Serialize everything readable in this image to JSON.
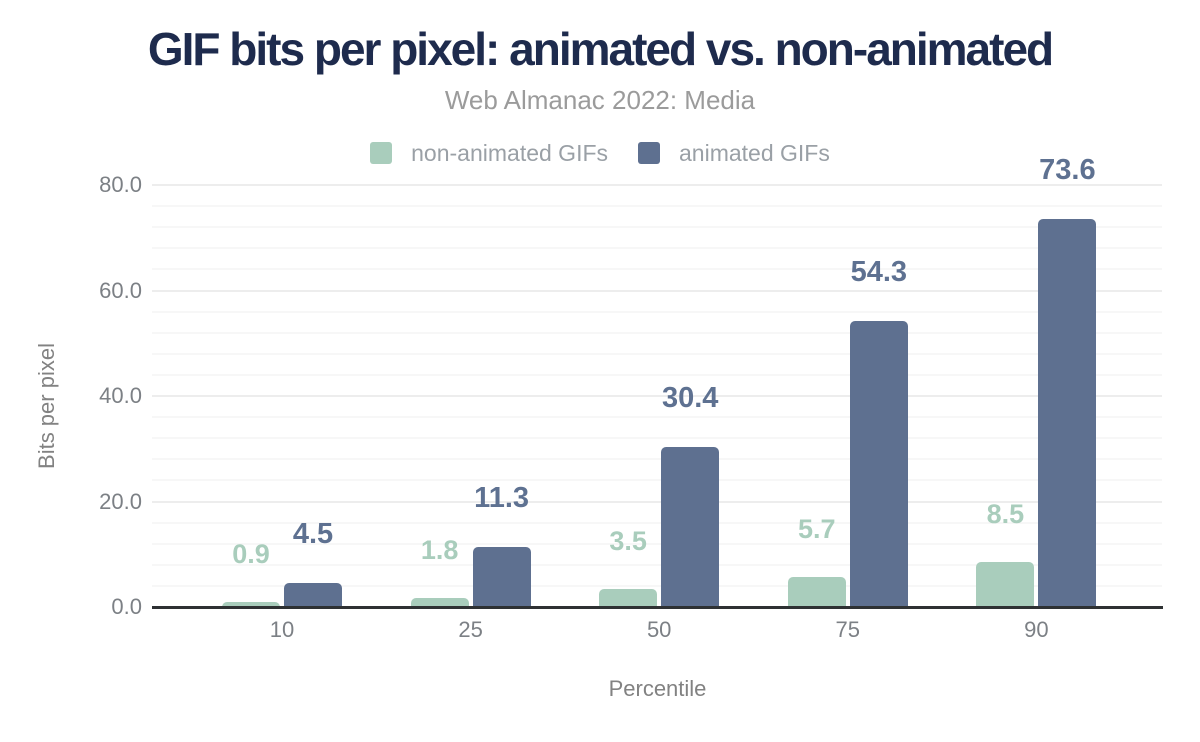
{
  "header": {
    "title": "GIF bits per pixel: animated vs. non-animated",
    "subtitle": "Web Almanac 2022: Media"
  },
  "colors": {
    "title_navy": "#1e2b4d",
    "non_animated_green": "#a9cdbc",
    "animated_slate": "#5e7090",
    "animated_label_slate": "#5e7191",
    "axis_text_gray": "#7c8085",
    "legend_text_gray": "#9aa0a6",
    "subtitle_gray": "#9b9b9b",
    "gridline_minor": "#f7f7f7",
    "gridline_major": "#ededed",
    "axis_line_dark": "#2e3133"
  },
  "chart_data": {
    "type": "bar",
    "title": "GIF bits per pixel: animated vs. non-animated",
    "subtitle": "Web Almanac 2022: Media",
    "categories": [
      "10",
      "25",
      "50",
      "75",
      "90"
    ],
    "series": [
      {
        "name": "non-animated GIFs",
        "color": "#a9cdbc",
        "label_color": "#a9cdbc",
        "values": [
          0.9,
          1.8,
          3.5,
          5.7,
          8.5
        ]
      },
      {
        "name": "animated GIFs",
        "color": "#5e7090",
        "label_color": "#5e7191",
        "values": [
          4.5,
          11.3,
          30.4,
          54.3,
          73.6
        ]
      }
    ],
    "xlabel": "Percentile",
    "ylabel": "Bits per pixel",
    "ylim": [
      0,
      80
    ],
    "yticks": [
      0,
      20,
      40,
      60,
      80
    ],
    "ytick_labels": [
      "0.0",
      "20.0",
      "40.0",
      "60.0",
      "80.0"
    ],
    "minor_grid_step": 4,
    "major_grid_step": 20,
    "grid": "horizontal",
    "legend_position": "top",
    "data_labels": "above bars, one decimal"
  }
}
